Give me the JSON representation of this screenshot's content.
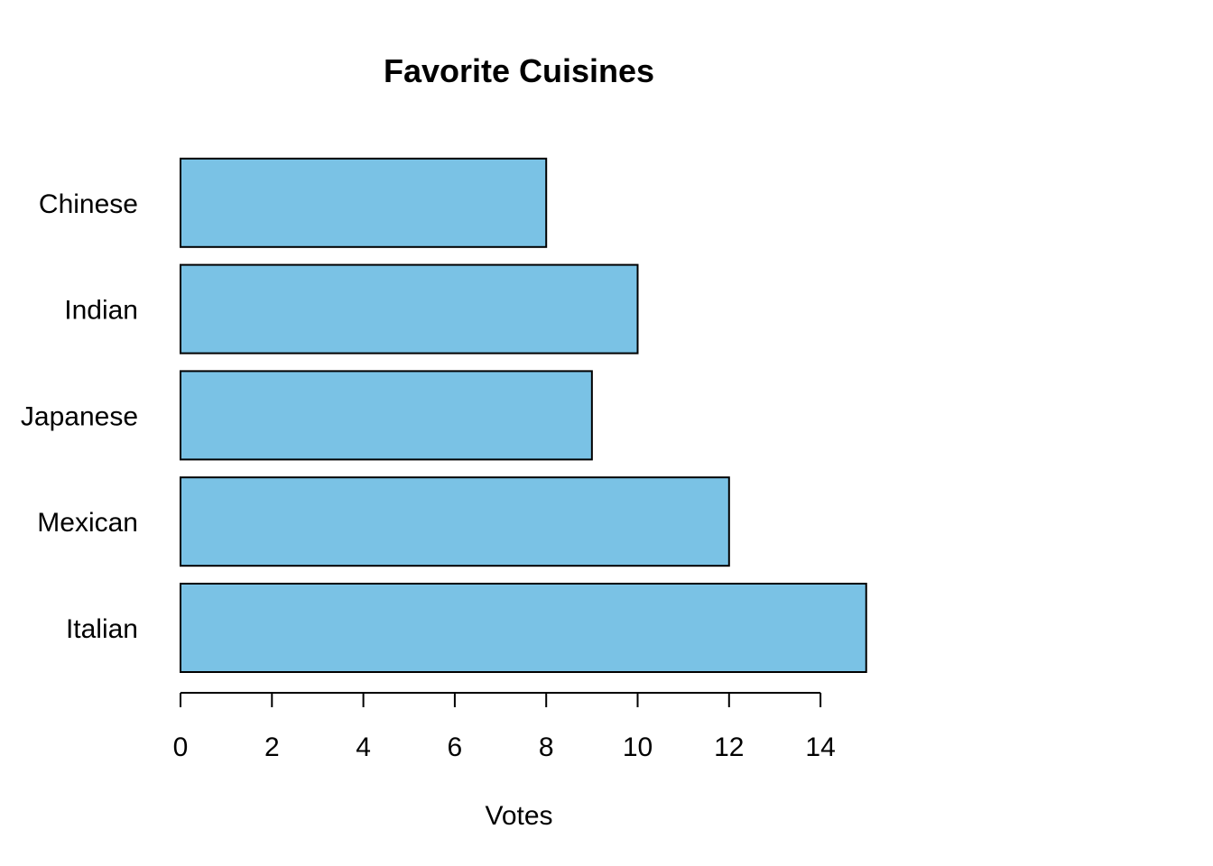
{
  "chart_data": {
    "type": "bar",
    "orientation": "horizontal",
    "title": "Favorite Cuisines",
    "xlabel": "Votes",
    "ylabel": "",
    "categories": [
      "Italian",
      "Mexican",
      "Japanese",
      "Indian",
      "Chinese"
    ],
    "values": [
      15,
      12,
      9,
      10,
      8
    ],
    "x_ticks": [
      0,
      2,
      4,
      6,
      8,
      10,
      12,
      14
    ],
    "xlim": [
      0,
      15
    ],
    "grid": false,
    "bar_color": "#7AC2E5",
    "bar_border_color": "#000000"
  }
}
